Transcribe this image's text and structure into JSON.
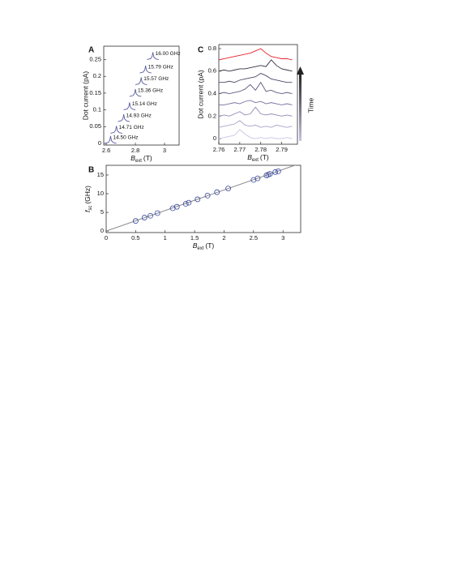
{
  "chart_data": [
    {
      "type": "line",
      "panel": "A",
      "ylabel": "Dot current (pA)",
      "xlabel": {
        "text": "B",
        "sub": "ext",
        "unit": "(T)"
      },
      "xlim": [
        2.583,
        3.1
      ],
      "ylim": [
        -0.005,
        0.29
      ],
      "xticks": [
        2.6,
        2.8,
        3
      ],
      "yticks": [
        0,
        0.05,
        0.1,
        0.15,
        0.2,
        0.25
      ],
      "series": [
        {
          "name": "14.50 GHz",
          "color": "#5a5f9e",
          "x": [
            2.59,
            2.615,
            2.625,
            2.63,
            2.636,
            2.65,
            2.67
          ],
          "values": [
            0,
            0.003,
            0.01,
            0.022,
            0.008,
            0.002,
            0
          ]
        },
        {
          "name": "14.71 GHz",
          "color": "#5a5f9e",
          "x": [
            2.63,
            2.655,
            2.665,
            2.67,
            2.676,
            2.69,
            2.71
          ],
          "values": [
            0.03,
            0.033,
            0.04,
            0.052,
            0.038,
            0.032,
            0.03
          ]
        },
        {
          "name": "14.93 GHz",
          "color": "#5a5f9e",
          "x": [
            2.68,
            2.705,
            2.715,
            2.72,
            2.726,
            2.74,
            2.76
          ],
          "values": [
            0.065,
            0.068,
            0.075,
            0.087,
            0.073,
            0.067,
            0.065
          ]
        },
        {
          "name": "15.14 GHz",
          "color": "#5a5f9e",
          "x": [
            2.72,
            2.745,
            2.755,
            2.76,
            2.766,
            2.78,
            2.8
          ],
          "values": [
            0.1,
            0.103,
            0.11,
            0.122,
            0.108,
            0.102,
            0.1
          ]
        },
        {
          "name": "15.36 GHz",
          "color": "#5a5f9e",
          "x": [
            2.76,
            2.785,
            2.795,
            2.8,
            2.806,
            2.82,
            2.84
          ],
          "values": [
            0.14,
            0.143,
            0.15,
            0.162,
            0.148,
            0.142,
            0.14
          ]
        },
        {
          "name": "15.57 GHz",
          "color": "#5a5f9e",
          "x": [
            2.8,
            2.825,
            2.835,
            2.84,
            2.846,
            2.86,
            2.88
          ],
          "values": [
            0.175,
            0.178,
            0.185,
            0.197,
            0.183,
            0.177,
            0.175
          ]
        },
        {
          "name": "15.79 GHz",
          "color": "#5a5f9e",
          "x": [
            2.83,
            2.855,
            2.865,
            2.87,
            2.876,
            2.89,
            2.91
          ],
          "values": [
            0.21,
            0.213,
            0.22,
            0.232,
            0.218,
            0.212,
            0.21
          ]
        },
        {
          "name": "16.00 GHz",
          "color": "#5a5f9e",
          "x": [
            2.88,
            2.905,
            2.915,
            2.92,
            2.926,
            2.94,
            2.96
          ],
          "values": [
            0.25,
            0.253,
            0.26,
            0.272,
            0.258,
            0.252,
            0.25
          ]
        }
      ]
    },
    {
      "type": "line",
      "panel": "C",
      "ylabel": "Dot current (pA)",
      "annotation": "Time",
      "xlabel": {
        "text": "B",
        "sub": "ext",
        "unit": "(T)"
      },
      "xlim": [
        2.76,
        2.7975
      ],
      "ylim": [
        -0.05,
        0.836
      ],
      "xticks": [
        2.76,
        2.77,
        2.78,
        2.79
      ],
      "yticks": [
        0,
        0.2,
        0.4,
        0.6,
        0.8
      ],
      "x": [
        2.76,
        2.7625,
        2.765,
        2.7675,
        2.77,
        2.7725,
        2.775,
        2.7775,
        2.78,
        2.7825,
        2.785,
        2.7875,
        2.79,
        2.7925,
        2.795
      ],
      "series": [
        {
          "color": "#c9c3e2",
          "values": [
            0.0,
            0.01,
            0.02,
            0.03,
            0.08,
            0.04,
            0.01,
            0.0,
            0.01,
            0.0,
            0.01,
            0.0,
            0.0,
            0.01,
            0.0
          ]
        },
        {
          "color": "#aaa3cc",
          "values": [
            0.1,
            0.11,
            0.12,
            0.13,
            0.16,
            0.12,
            0.11,
            0.12,
            0.1,
            0.11,
            0.1,
            0.12,
            0.11,
            0.1,
            0.11
          ]
        },
        {
          "color": "#8e88b4",
          "values": [
            0.2,
            0.21,
            0.2,
            0.22,
            0.24,
            0.21,
            0.22,
            0.28,
            0.22,
            0.21,
            0.22,
            0.21,
            0.2,
            0.21,
            0.2
          ]
        },
        {
          "color": "#75709a",
          "values": [
            0.3,
            0.3,
            0.31,
            0.32,
            0.31,
            0.33,
            0.34,
            0.32,
            0.33,
            0.31,
            0.32,
            0.31,
            0.3,
            0.31,
            0.3
          ]
        },
        {
          "color": "#5e5a80",
          "values": [
            0.4,
            0.41,
            0.4,
            0.41,
            0.42,
            0.44,
            0.48,
            0.43,
            0.5,
            0.42,
            0.43,
            0.41,
            0.4,
            0.41,
            0.4
          ]
        },
        {
          "color": "#4a4766",
          "values": [
            0.5,
            0.5,
            0.51,
            0.5,
            0.52,
            0.53,
            0.54,
            0.55,
            0.58,
            0.56,
            0.53,
            0.52,
            0.51,
            0.5,
            0.5
          ]
        },
        {
          "color": "#333344",
          "values": [
            0.6,
            0.61,
            0.6,
            0.61,
            0.62,
            0.62,
            0.63,
            0.64,
            0.65,
            0.64,
            0.7,
            0.65,
            0.62,
            0.61,
            0.6
          ]
        },
        {
          "color": "#e8202a",
          "values": [
            0.7,
            0.71,
            0.72,
            0.73,
            0.74,
            0.75,
            0.76,
            0.78,
            0.8,
            0.76,
            0.73,
            0.72,
            0.71,
            0.71,
            0.7
          ]
        }
      ]
    },
    {
      "type": "scatter",
      "panel": "B",
      "ylabel": {
        "text": "f",
        "sub": "sc",
        "unit": "(GHz)"
      },
      "xlabel": {
        "text": "B",
        "sub": "ext",
        "unit": "(T)"
      },
      "xlim": [
        0,
        3.3
      ],
      "ylim": [
        -0.4,
        17.6
      ],
      "xticks": [
        0,
        0.5,
        1,
        1.5,
        2,
        2.5,
        3
      ],
      "yticks": [
        0,
        5,
        10,
        15
      ],
      "color": "#3a4aa0",
      "x": [
        0.5,
        0.65,
        0.75,
        0.87,
        1.13,
        1.2,
        1.35,
        1.4,
        1.55,
        1.72,
        1.88,
        2.07,
        2.5,
        2.57,
        2.72,
        2.75,
        2.78,
        2.87,
        2.92
      ],
      "values": [
        2.7,
        3.6,
        4.1,
        4.8,
        6.1,
        6.5,
        7.3,
        7.6,
        8.5,
        9.5,
        10.4,
        11.4,
        13.7,
        14.1,
        14.9,
        15.1,
        15.3,
        15.8,
        16.0
      ],
      "fit": {
        "color": "#888888",
        "x": [
          0,
          3.3
        ],
        "values": [
          0,
          18.15
        ]
      }
    }
  ]
}
